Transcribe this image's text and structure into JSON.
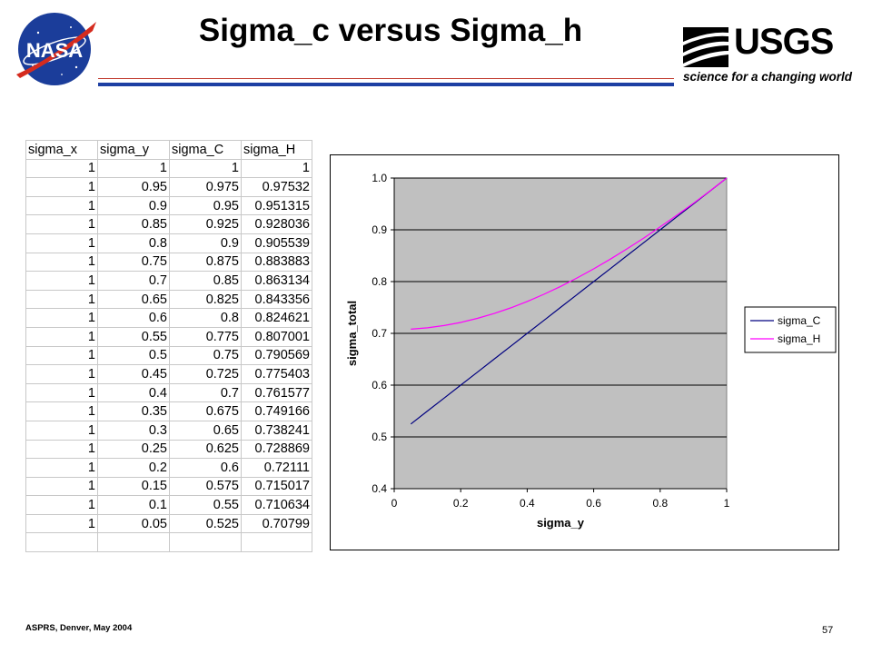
{
  "slide": {
    "title": "Sigma_c versus Sigma_h",
    "footer_left": "ASPRS, Denver, May 2004",
    "page_number": "57"
  },
  "logos": {
    "nasa": "NASA",
    "usgs": "USGS",
    "usgs_tagline": "science for a changing world"
  },
  "colors": {
    "plot_background": "#c0c0c0",
    "sigma_C": "#000080",
    "sigma_H": "#ff00ff",
    "nasa_blue": "#1b3d9a",
    "nasa_red": "#d52b1e",
    "title_rule_red": "#c0392b",
    "title_rule_blue": "#1d3fa3"
  },
  "table": {
    "headers": [
      "sigma_x",
      "sigma_y",
      "sigma_C",
      "sigma_H"
    ],
    "rows": [
      [
        "1",
        "1",
        "1",
        "1"
      ],
      [
        "1",
        "0.95",
        "0.975",
        "0.97532"
      ],
      [
        "1",
        "0.9",
        "0.95",
        "0.951315"
      ],
      [
        "1",
        "0.85",
        "0.925",
        "0.928036"
      ],
      [
        "1",
        "0.8",
        "0.9",
        "0.905539"
      ],
      [
        "1",
        "0.75",
        "0.875",
        "0.883883"
      ],
      [
        "1",
        "0.7",
        "0.85",
        "0.863134"
      ],
      [
        "1",
        "0.65",
        "0.825",
        "0.843356"
      ],
      [
        "1",
        "0.6",
        "0.8",
        "0.824621"
      ],
      [
        "1",
        "0.55",
        "0.775",
        "0.807001"
      ],
      [
        "1",
        "0.5",
        "0.75",
        "0.790569"
      ],
      [
        "1",
        "0.45",
        "0.725",
        "0.775403"
      ],
      [
        "1",
        "0.4",
        "0.7",
        "0.761577"
      ],
      [
        "1",
        "0.35",
        "0.675",
        "0.749166"
      ],
      [
        "1",
        "0.3",
        "0.65",
        "0.738241"
      ],
      [
        "1",
        "0.25",
        "0.625",
        "0.728869"
      ],
      [
        "1",
        "0.2",
        "0.6",
        "0.72111"
      ],
      [
        "1",
        "0.15",
        "0.575",
        "0.715017"
      ],
      [
        "1",
        "0.1",
        "0.55",
        "0.710634"
      ],
      [
        "1",
        "0.05",
        "0.525",
        "0.70799"
      ],
      [
        "",
        "",
        "",
        ""
      ]
    ]
  },
  "chart_data": {
    "type": "line",
    "title": "",
    "xlabel": "sigma_y",
    "ylabel": "sigma_total",
    "xlim": [
      0,
      1
    ],
    "ylim": [
      0.4,
      1.0
    ],
    "xticks": [
      "0",
      "0.2",
      "0.4",
      "0.6",
      "0.8",
      "1"
    ],
    "yticks": [
      "0.4",
      "0.5",
      "0.6",
      "0.7",
      "0.8",
      "0.9",
      "1.0"
    ],
    "grid": "horizontal",
    "legend_position": "right",
    "x": [
      0.05,
      0.1,
      0.15,
      0.2,
      0.25,
      0.3,
      0.35,
      0.4,
      0.45,
      0.5,
      0.55,
      0.6,
      0.65,
      0.7,
      0.75,
      0.8,
      0.85,
      0.9,
      0.95,
      1.0
    ],
    "series": [
      {
        "name": "sigma_C",
        "color": "#000080",
        "values": [
          0.525,
          0.55,
          0.575,
          0.6,
          0.625,
          0.65,
          0.675,
          0.7,
          0.725,
          0.75,
          0.775,
          0.8,
          0.825,
          0.85,
          0.875,
          0.9,
          0.925,
          0.95,
          0.975,
          1.0
        ]
      },
      {
        "name": "sigma_H",
        "color": "#ff00ff",
        "values": [
          0.70799,
          0.710634,
          0.715017,
          0.72111,
          0.728869,
          0.738241,
          0.749166,
          0.761577,
          0.775403,
          0.790569,
          0.807001,
          0.824621,
          0.843356,
          0.863134,
          0.883883,
          0.905539,
          0.928036,
          0.951315,
          0.97532,
          1.0
        ]
      }
    ]
  }
}
